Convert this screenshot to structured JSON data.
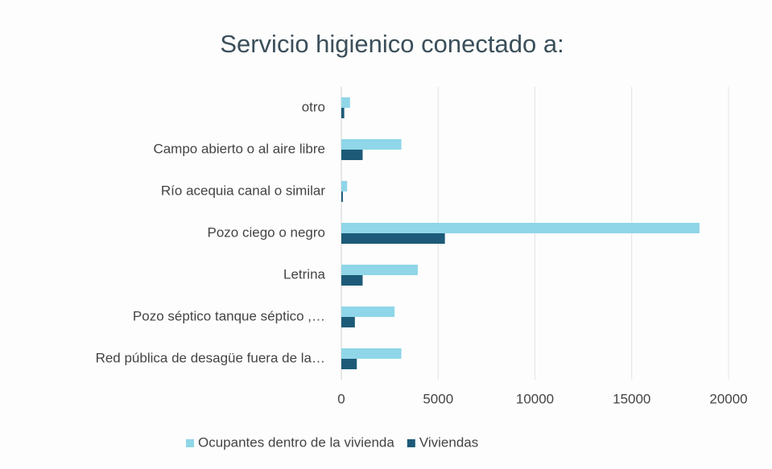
{
  "chart_data": {
    "type": "hbar",
    "title": "Servicio higienico conectado a:",
    "categories": [
      "otro",
      "Campo abierto o al aire libre",
      "Río acequia canal o similar",
      "Pozo ciego o negro",
      "Letrina",
      "Pozo séptico tanque séptico ,…",
      "Red pública de desagüe fuera de la…"
    ],
    "series": [
      {
        "name": "Ocupantes dentro de la vivienda",
        "color": "#8fd6e8",
        "values": [
          450,
          3100,
          300,
          18500,
          3950,
          2750,
          3100
        ]
      },
      {
        "name": "Viviendas",
        "color": "#1d5a78",
        "values": [
          150,
          1100,
          80,
          5350,
          1100,
          700,
          800
        ]
      }
    ],
    "xlim": [
      0,
      20000
    ],
    "xticks": [
      0,
      5000,
      10000,
      15000,
      20000
    ],
    "grid": true,
    "legend": "bottom"
  }
}
